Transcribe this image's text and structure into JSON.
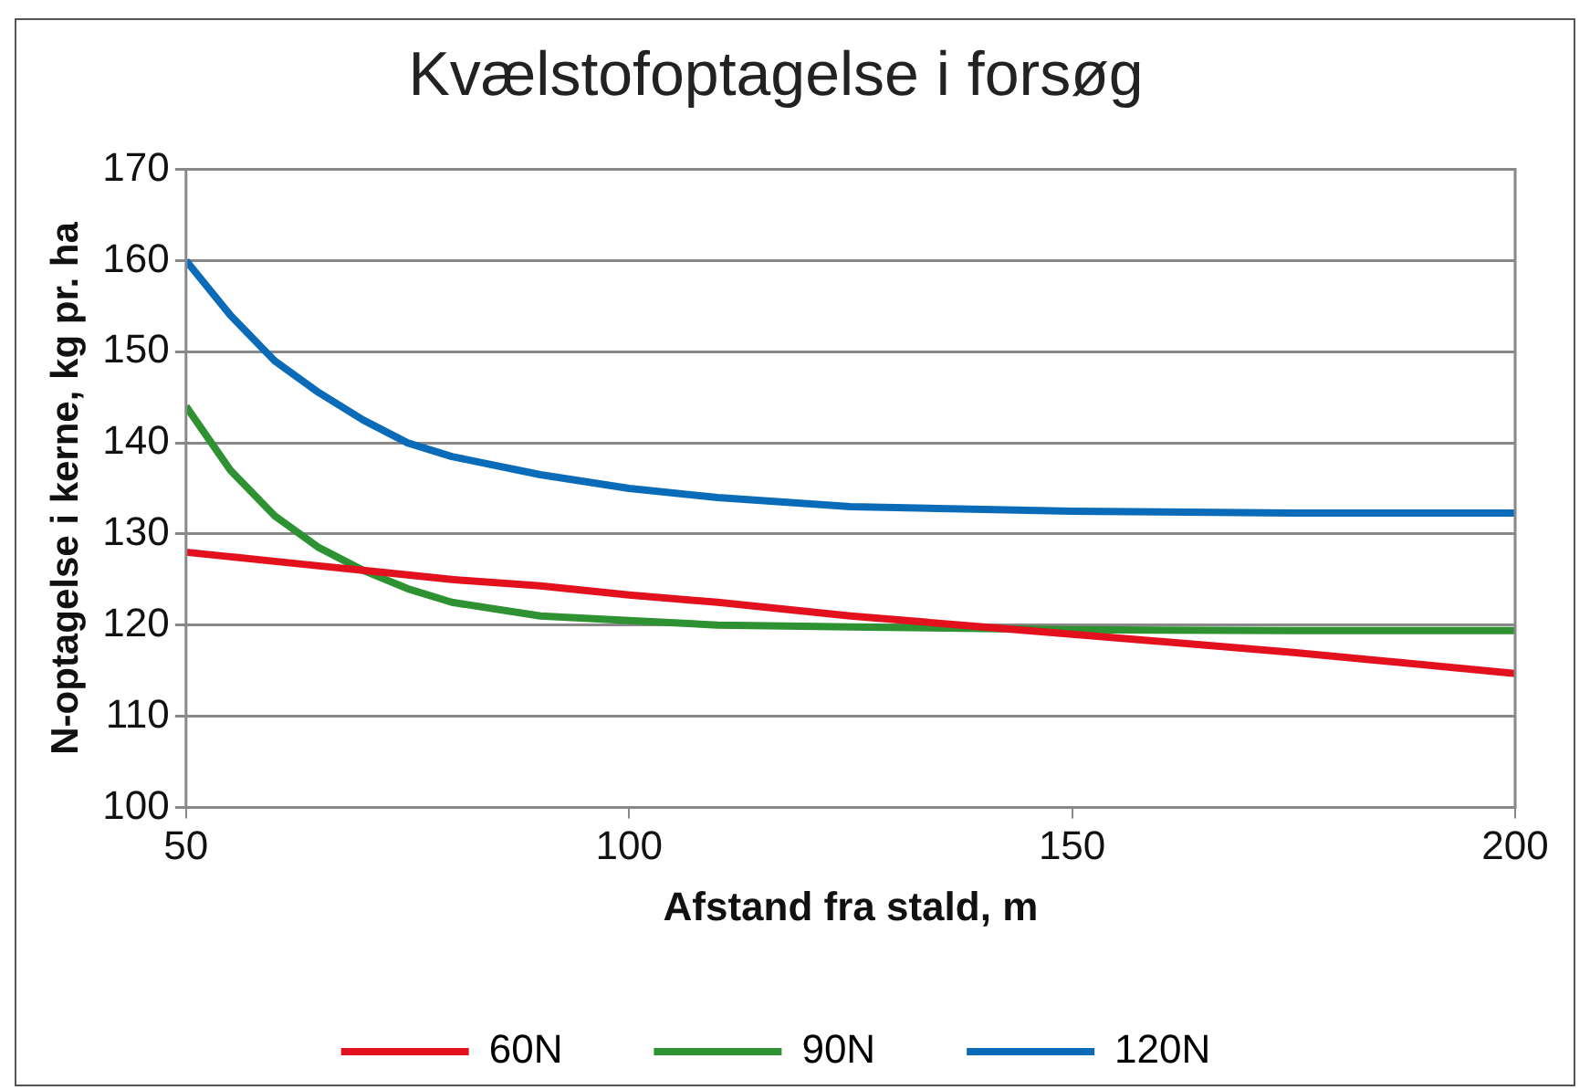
{
  "chart_data": {
    "type": "line",
    "title": "Kvælstofoptagelse i forsøg",
    "xlabel": "Afstand fra stald, m",
    "ylabel": "N-optagelse i kerne, kg pr. ha",
    "x": [
      50,
      55,
      60,
      65,
      70,
      75,
      80,
      90,
      100,
      110,
      125,
      150,
      175,
      200
    ],
    "series": [
      {
        "name": "60N",
        "color": "#e3101e",
        "values": [
          128,
          127.5,
          127,
          126.5,
          126,
          125.5,
          125,
          124.3,
          123.3,
          122.5,
          121,
          119,
          117,
          114.7
        ]
      },
      {
        "name": "90N",
        "color": "#2e9132",
        "values": [
          144,
          137,
          132,
          128.5,
          126,
          124,
          122.5,
          121,
          120.5,
          120,
          119.8,
          119.5,
          119.4,
          119.4
        ]
      },
      {
        "name": "120N",
        "color": "#0a6cb8",
        "values": [
          160,
          154,
          149,
          145.5,
          142.5,
          140,
          138.5,
          136.5,
          135,
          134,
          133,
          132.5,
          132.3,
          132.3
        ]
      }
    ],
    "xlim": [
      50,
      200
    ],
    "xticks": [
      50,
      100,
      150,
      200
    ],
    "ylim": [
      100,
      170
    ],
    "yticks": [
      100,
      110,
      120,
      130,
      140,
      150,
      160,
      170
    ],
    "grid": "y",
    "legend": "bottom",
    "marker": "none",
    "line_style": "solid"
  }
}
